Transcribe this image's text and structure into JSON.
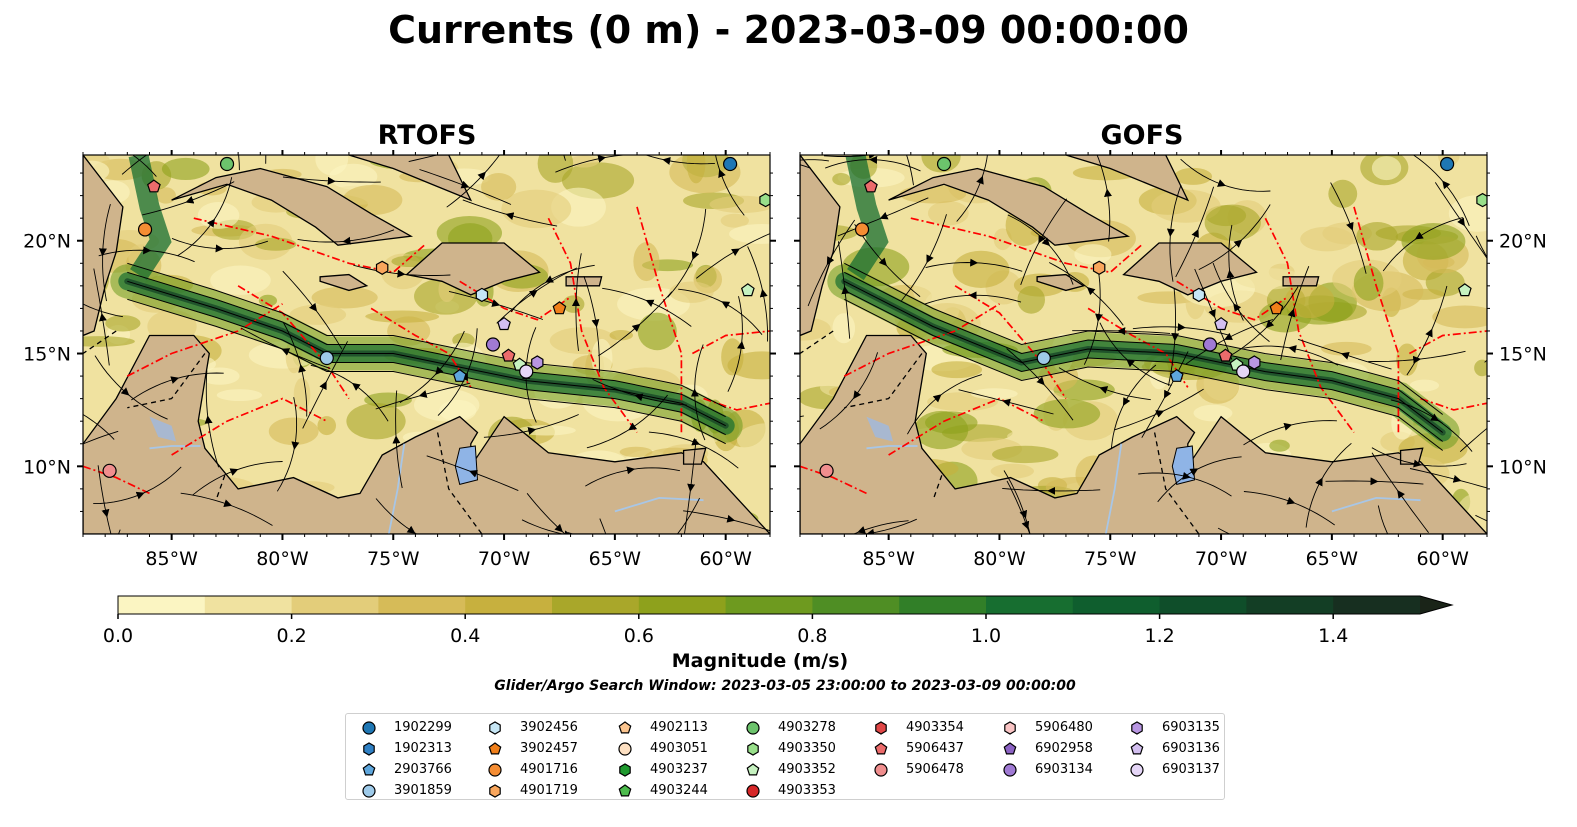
{
  "title": "Currents (0 m) - 2023-03-09 00:00:00",
  "panels": [
    {
      "name": "RTOFS"
    },
    {
      "name": "GOFS"
    }
  ],
  "colors": {
    "land": "#cfb48c",
    "water": "#a8c6e6",
    "eez": "#ff0000",
    "streamline": "#000000",
    "cmap": [
      "#fbf5c2",
      "#f0e2a0",
      "#e3cd7a",
      "#d6bb58",
      "#c7b03e",
      "#a9a72a",
      "#8ea11c",
      "#6e9a1f",
      "#4f8e24",
      "#317f28",
      "#176e30",
      "#0f5e2e",
      "#0f4e2a",
      "#133e25",
      "#172f20",
      "#1a2418"
    ]
  },
  "map": {
    "lon_ticks": [
      "85°W",
      "80°W",
      "75°W",
      "70°W",
      "65°W",
      "60°W"
    ],
    "lat_ticks_left": [
      "20°N",
      "15°N",
      "10°N"
    ],
    "lat_ticks_right": [
      "20°N",
      "15°N",
      "10°N"
    ]
  },
  "colorbar": {
    "label": "Magnitude (m/s)",
    "min": 0.0,
    "max": 1.5,
    "step": 0.1,
    "extend": "max",
    "ticks": [
      "0.0",
      "0.2",
      "0.4",
      "0.6",
      "0.8",
      "1.0",
      "1.2",
      "1.4"
    ]
  },
  "search_window": "Glider/Argo Search Window: 2023-03-05 23:00:00 to 2023-03-09 00:00:00",
  "legend": {
    "columns": [
      [
        {
          "id": "1902299",
          "shape": "circle",
          "color": "#1f77b4"
        },
        {
          "id": "1902313",
          "shape": "hexagon",
          "color": "#2f80c4"
        },
        {
          "id": "2903766",
          "shape": "pentagon",
          "color": "#5ea6dc"
        },
        {
          "id": "3901859",
          "shape": "circle",
          "color": "#9ecae9"
        }
      ],
      [
        {
          "id": "3902456",
          "shape": "hexagon",
          "color": "#c6e6f5"
        },
        {
          "id": "3902457",
          "shape": "pentagon",
          "color": "#f07f1a"
        },
        {
          "id": "4901716",
          "shape": "circle",
          "color": "#f58d33"
        },
        {
          "id": "4901719",
          "shape": "hexagon",
          "color": "#f9a65c"
        }
      ],
      [
        {
          "id": "4902113",
          "shape": "pentagon",
          "color": "#fcc58f"
        },
        {
          "id": "4903051",
          "shape": "circle",
          "color": "#fde0c2"
        },
        {
          "id": "4903237",
          "shape": "hexagon",
          "color": "#1f9a2f"
        },
        {
          "id": "4903244",
          "shape": "pentagon",
          "color": "#4cbb4c"
        }
      ],
      [
        {
          "id": "4903278",
          "shape": "circle",
          "color": "#6cc36c"
        },
        {
          "id": "4903350",
          "shape": "hexagon",
          "color": "#98df8a"
        },
        {
          "id": "4903352",
          "shape": "pentagon",
          "color": "#c6f2c0"
        },
        {
          "id": "4903353",
          "shape": "circle",
          "color": "#d62728"
        }
      ],
      [
        {
          "id": "4903354",
          "shape": "hexagon",
          "color": "#e04646"
        },
        {
          "id": "5906437",
          "shape": "pentagon",
          "color": "#ec6b6b"
        },
        {
          "id": "5906478",
          "shape": "circle",
          "color": "#f08e8e"
        }
      ],
      [
        {
          "id": "5906480",
          "shape": "hexagon",
          "color": "#f9c4c4"
        },
        {
          "id": "6902958",
          "shape": "pentagon",
          "color": "#8c63c4"
        },
        {
          "id": "6903134",
          "shape": "circle",
          "color": "#a07ad4"
        }
      ],
      [
        {
          "id": "6903135",
          "shape": "hexagon",
          "color": "#b896e2"
        },
        {
          "id": "6903136",
          "shape": "pentagon",
          "color": "#d3bff0"
        },
        {
          "id": "6903137",
          "shape": "circle",
          "color": "#e5d6f7"
        }
      ]
    ]
  }
}
